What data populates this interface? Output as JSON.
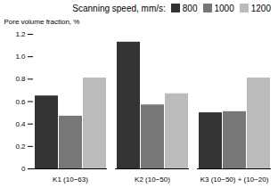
{
  "chart_data": {
    "type": "bar",
    "categories": [
      "K1 (10−63)",
      "K2 (10−50)",
      "K3 (10−50) + (10−20)"
    ],
    "series": [
      {
        "name": "800",
        "color": "#333333",
        "values": [
          0.65,
          1.13,
          0.5
        ]
      },
      {
        "name": "1000",
        "color": "#777777",
        "values": [
          0.47,
          0.57,
          0.51
        ]
      },
      {
        "name": "1200",
        "color": "#bbbbbb",
        "values": [
          0.81,
          0.67,
          0.81
        ]
      }
    ],
    "ylabel": "Pore volume fraction, %",
    "legend_title": "Scanning speed, mm/s:",
    "legend": "upper right",
    "ylim": [
      0,
      1.2
    ],
    "yticks": [
      0,
      0.2,
      0.4,
      0.6,
      0.8,
      {
        "value": 1.0,
        "label": "1.0"
      },
      1.2
    ],
    "grid": false
  }
}
